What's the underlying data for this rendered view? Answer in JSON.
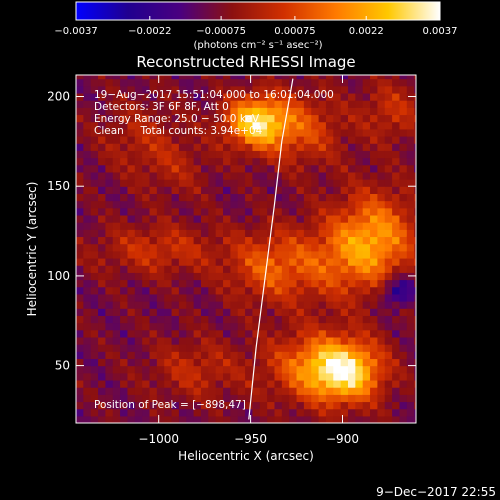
{
  "chart_data": {
    "type": "heatmap",
    "title": "Reconstructed RHESSI Image",
    "xlabel": "Heliocentric X (arcsec)",
    "ylabel": "Heliocentric Y (arcsec)",
    "xlim": [
      -1045,
      -860
    ],
    "ylim": [
      18,
      212
    ],
    "x_ticks": [
      -1000,
      -950,
      -900
    ],
    "x_tick_labels": [
      "−1000",
      "−950",
      "−900"
    ],
    "y_ticks": [
      50,
      100,
      150,
      200
    ],
    "y_tick_labels": [
      "50",
      "100",
      "150",
      "200"
    ],
    "colorbar": {
      "range": [
        -0.0037,
        0.0037
      ],
      "ticks": [
        -0.0037,
        -0.0022,
        -0.00075,
        0.00075,
        0.0022,
        0.0037
      ],
      "tick_labels": [
        "−0.0037",
        "−0.0022",
        "−0.00075",
        "0.00075",
        "0.0022",
        "0.0037"
      ],
      "unit_label": "(photons cm⁻² s⁻¹ asec⁻²)",
      "colors": [
        "#0000ff",
        "#200090",
        "#4a0080",
        "#8c1010",
        "#d13000",
        "#ff7a00",
        "#ffc800",
        "#ffffff"
      ]
    },
    "annotations": {
      "time_range": "19−Aug−2017 15:51:04.000 to 16:01:04.000",
      "detectors": "Detectors: 3F 6F 8F, Att 0",
      "energy_range": "Energy Range: 25.0 − 50.0 keV",
      "clean_counts": "Clean     Total counts: 3.94e+04",
      "peak": "Position of Peak = [−898,47]"
    },
    "sources": [
      {
        "x": -947,
        "y": 186,
        "peak": 0.0037,
        "sx": 12,
        "sy": 10
      },
      {
        "x": -922,
        "y": 182,
        "peak": 0.0016,
        "sx": 16,
        "sy": 14
      },
      {
        "x": -898,
        "y": 47,
        "peak": 0.0037,
        "sx": 14,
        "sy": 12
      },
      {
        "x": -918,
        "y": 50,
        "peak": 0.0019,
        "sx": 18,
        "sy": 14
      },
      {
        "x": -882,
        "y": 122,
        "peak": 0.0026,
        "sx": 16,
        "sy": 18
      },
      {
        "x": -905,
        "y": 108,
        "peak": 0.0014,
        "sx": 18,
        "sy": 16
      },
      {
        "x": -940,
        "y": 105,
        "peak": 0.0018,
        "sx": 16,
        "sy": 14
      },
      {
        "x": -1000,
        "y": 115,
        "peak": 0.0013,
        "sx": 24,
        "sy": 10
      },
      {
        "x": -980,
        "y": 48,
        "peak": 0.0011,
        "sx": 18,
        "sy": 12
      },
      {
        "x": -1010,
        "y": 178,
        "peak": 0.0009,
        "sx": 16,
        "sy": 14
      },
      {
        "x": -990,
        "y": 160,
        "peak": 0.0007,
        "sx": 14,
        "sy": 12
      },
      {
        "x": -873,
        "y": 192,
        "peak": 0.0012,
        "sx": 12,
        "sy": 12
      },
      {
        "x": -870,
        "y": 92,
        "peak": -0.0021,
        "sx": 6,
        "sy": 6
      }
    ],
    "limb": [
      [
        -951,
        20
      ],
      [
        -947,
        60
      ],
      [
        -942,
        100
      ],
      [
        -937,
        140
      ],
      [
        -933,
        175
      ],
      [
        -927,
        210
      ]
    ],
    "footer_date": "9−Dec−2017 22:55"
  }
}
